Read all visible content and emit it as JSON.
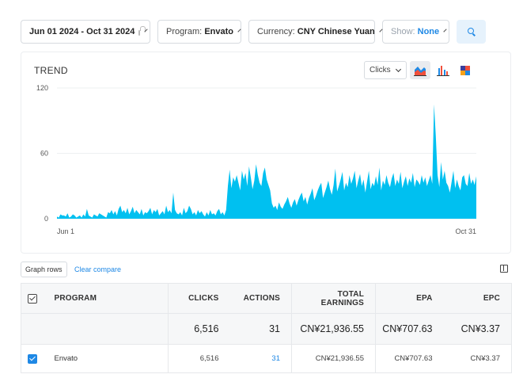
{
  "filters": {
    "date_range": "Jun 01 2024 - Oct 31 2024",
    "program_label": "Program:",
    "program_value": "Envato",
    "currency_label": "Currency:",
    "currency_value": "CNY Chinese Yuan",
    "show_label": "Show:",
    "show_value": "None"
  },
  "trend": {
    "title": "TREND",
    "metric": "Clicks",
    "chart_types": [
      "area-chart-icon",
      "bar-chart-icon",
      "heatmap-chart-icon"
    ],
    "accent_color": "#00c0f0"
  },
  "chart_data": {
    "type": "area",
    "title": "TREND",
    "x_start_label": "Jun 1",
    "x_end_label": "Oct 31",
    "yticks": [
      "0",
      "60",
      "120"
    ],
    "ylim": [
      0,
      120
    ],
    "series": [
      {
        "values": [
          2,
          1,
          4,
          3,
          3,
          2,
          5,
          1,
          2,
          4,
          3,
          1,
          2,
          3,
          1,
          4,
          2,
          9,
          3,
          2,
          1,
          4,
          3,
          2,
          5,
          4,
          3,
          2,
          1,
          6,
          5,
          8,
          4,
          7,
          3,
          9,
          12,
          6,
          8,
          5,
          10,
          4,
          7,
          11,
          5,
          8,
          6,
          4,
          9,
          3,
          6,
          5,
          7,
          10,
          4,
          8,
          6,
          9,
          3,
          5,
          7,
          4,
          12,
          6,
          8,
          5,
          24,
          8,
          5,
          4,
          6,
          3,
          10,
          5,
          7,
          12,
          9,
          4,
          6,
          3,
          8,
          5,
          7,
          4,
          2,
          6,
          3,
          8,
          4,
          5,
          3,
          7,
          9,
          4,
          6,
          3,
          8,
          30,
          45,
          28,
          38,
          34,
          40,
          33,
          26,
          44,
          36,
          42,
          30,
          48,
          38,
          27,
          35,
          50,
          40,
          33,
          30,
          42,
          47,
          36,
          31,
          26,
          14,
          10,
          12,
          8,
          15,
          11,
          9,
          13,
          16,
          20,
          14,
          10,
          15,
          18,
          12,
          17,
          21,
          24,
          16,
          20,
          13,
          19,
          23,
          28,
          17,
          21,
          26,
          30,
          33,
          19,
          24,
          29,
          35,
          27,
          22,
          31,
          46,
          25,
          30,
          36,
          43,
          26,
          33,
          29,
          40,
          32,
          37,
          44,
          28,
          35,
          41,
          30,
          36,
          24,
          34,
          44,
          27,
          33,
          30,
          39,
          31,
          47,
          26,
          35,
          31,
          40,
          33,
          29,
          37,
          42,
          30,
          36,
          32,
          43,
          28,
          34,
          39,
          30,
          37,
          33,
          42,
          29,
          36,
          34,
          31,
          40,
          33,
          38,
          30,
          35,
          40,
          32,
          105,
          76,
          40,
          29,
          52,
          36,
          44,
          33,
          30,
          24,
          34,
          44,
          28,
          36,
          30,
          26,
          38,
          40,
          32,
          30,
          42,
          32,
          36,
          31,
          39
        ]
      }
    ]
  },
  "table_toolbar": {
    "graph_rows": "Graph rows",
    "clear_compare": "Clear compare"
  },
  "table": {
    "headers": {
      "program": "PROGRAM",
      "clicks": "CLICKS",
      "actions": "ACTIONS",
      "total_earnings_line1": "TOTAL",
      "total_earnings_line2": "EARNINGS",
      "epa": "EPA",
      "epc": "EPC"
    },
    "total": {
      "clicks": "6,516",
      "actions": "31",
      "total_earnings": "CN¥21,936.55",
      "epa": "CN¥707.63",
      "epc": "CN¥3.37"
    },
    "rows": [
      {
        "program": "Envato",
        "clicks": "6,516",
        "actions": "31",
        "total_earnings": "CN¥21,936.55",
        "epa": "CN¥707.63",
        "epc": "CN¥3.37"
      }
    ]
  }
}
